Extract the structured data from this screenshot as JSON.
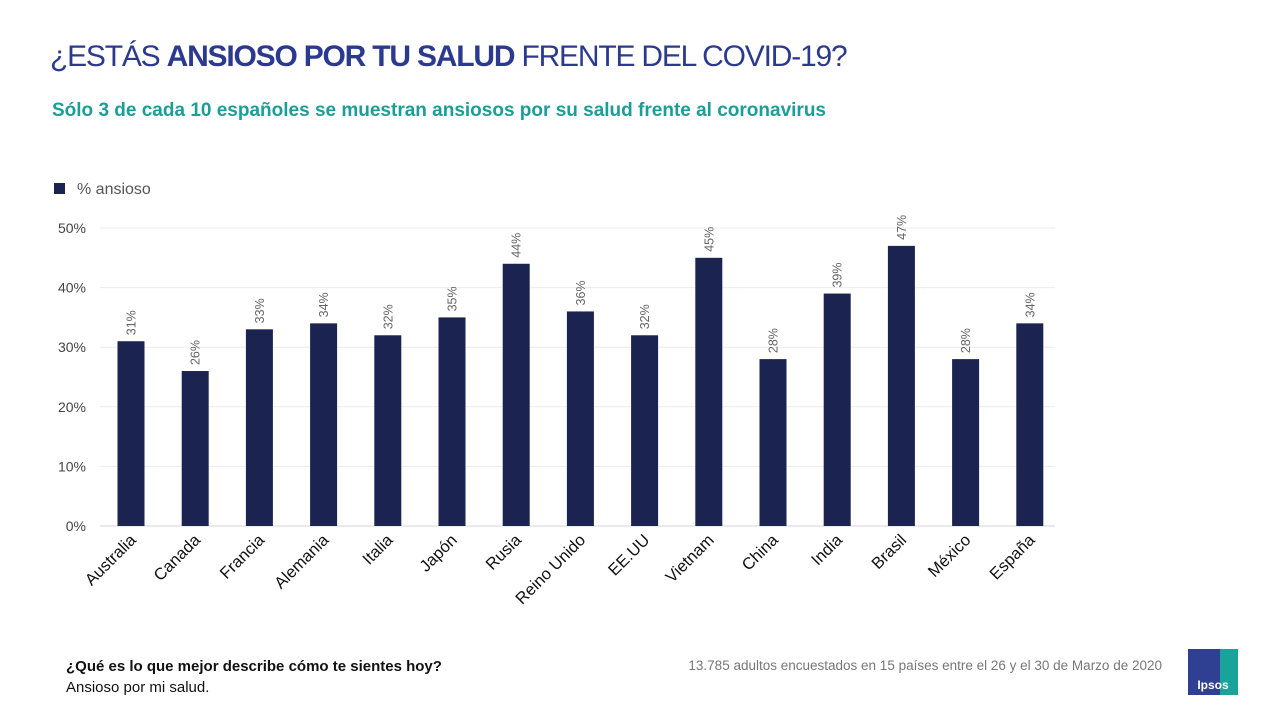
{
  "header": {
    "title_pre": "¿ESTÁS ",
    "title_bold": "ANSIOSO POR TU SALUD",
    "title_post": " FRENTE DEL COVID-19?",
    "subtitle": "Sólo 3 de cada 10 españoles se muestran ansiosos por su salud frente al coronavirus"
  },
  "chart_data": {
    "type": "bar",
    "categories": [
      "Australia",
      "Canada",
      "Francia",
      "Alemania",
      "Italia",
      "Japón",
      "Rusia",
      "Reino Unido",
      "EE.UU",
      "Vietnam",
      "China",
      "India",
      "Brasil",
      "México",
      "España"
    ],
    "series": [
      {
        "name": "% ansioso",
        "values": [
          31,
          26,
          33,
          34,
          32,
          35,
          44,
          36,
          32,
          45,
          28,
          39,
          47,
          28,
          34
        ],
        "color": "#1b2350"
      }
    ],
    "data_labels": [
      "31%",
      "26%",
      "33%",
      "34%",
      "32%",
      "35%",
      "44%",
      "36%",
      "32%",
      "45%",
      "28%",
      "39%",
      "47%",
      "28%",
      "34%"
    ],
    "yticks": [
      0,
      10,
      20,
      30,
      40,
      50
    ],
    "ytick_labels": [
      "0%",
      "10%",
      "20%",
      "30%",
      "40%",
      "50%"
    ],
    "ylim": [
      0,
      50
    ],
    "grid": true,
    "legend": "top-left"
  },
  "footer": {
    "question": "¿Qué es lo que mejor describe cómo te sientes hoy?",
    "answer": "Ansioso por mi salud.",
    "note": "13.785 adultos encuestados en 15 países entre el 26 y el 30 de Marzo de 2020"
  },
  "logo": {
    "text": "Ipsos",
    "colors": {
      "primary": "#2f3f92",
      "secondary": "#1aa39a"
    }
  }
}
